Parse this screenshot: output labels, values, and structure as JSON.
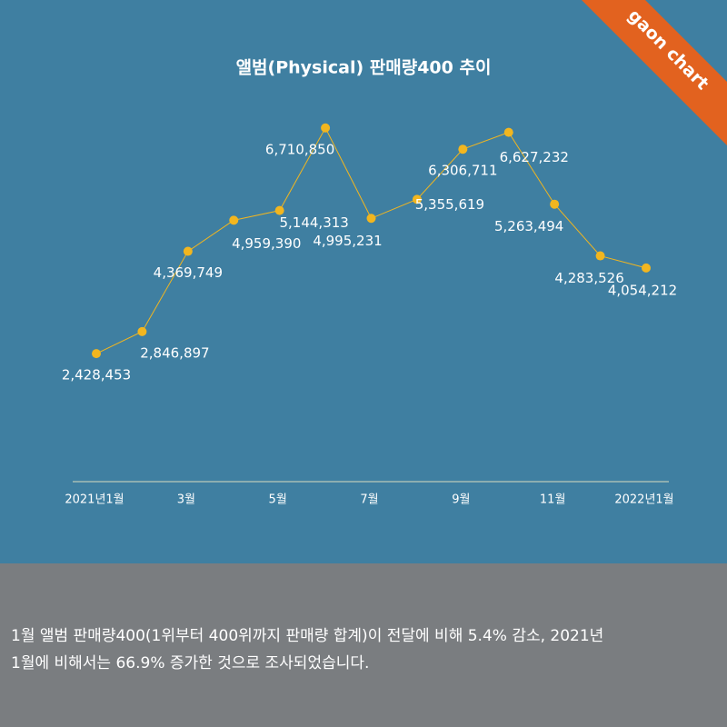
{
  "badge": "gaon chart",
  "chart_data": {
    "type": "line",
    "title": "앨범(Physical) 판매량400 추이",
    "categories": [
      "2021년1월",
      null,
      "3월",
      null,
      "5월",
      null,
      "7월",
      null,
      "9월",
      null,
      "11월",
      null,
      "2022년1월"
    ],
    "values": [
      2428453,
      2846897,
      4369749,
      4959390,
      5144313,
      6710850,
      4995231,
      5355619,
      6306711,
      6627232,
      5263494,
      4283526,
      4054212
    ],
    "value_labels": [
      "2,428,453",
      "2,846,897",
      "4,369,749",
      "4,959,390",
      "5,144,313",
      "6,710,850",
      "4,995,231",
      "5,355,619",
      "6,306,711",
      "6,627,232",
      "5,263,494",
      "4,283,526",
      "4,054,212"
    ],
    "color": "#f2b61f",
    "ylim": [
      0,
      7000000
    ]
  },
  "caption": [
    "1월 앨범 판매량400(1위부터 400위까지 판매량 합계)이 전달에 비해 5.4% 감소, 2021년",
    "1월에 비해서는 66.9% 증가한 것으로 조사되었습니다."
  ]
}
